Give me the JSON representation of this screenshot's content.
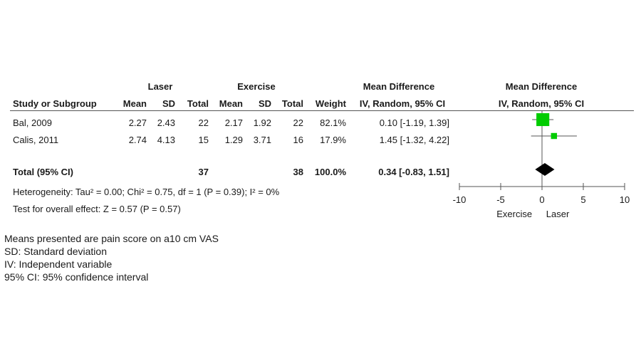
{
  "header": {
    "group1": "Laser",
    "group2": "Exercise",
    "effect_left": "Mean Difference",
    "effect_right": "Mean Difference",
    "col_study": "Study or Subgroup",
    "col_mean1": "Mean",
    "col_sd1": "SD",
    "col_total1": "Total",
    "col_mean2": "Mean",
    "col_sd2": "SD",
    "col_total2": "Total",
    "col_weight": "Weight",
    "col_ci": "IV, Random, 95% CI",
    "col_ci_plot": "IV, Random, 95% CI"
  },
  "studies": [
    {
      "name": "Bal, 2009",
      "mean1": "2.27",
      "sd1": "2.43",
      "total1": "22",
      "mean2": "2.17",
      "sd2": "1.92",
      "total2": "22",
      "weight": "82.1%",
      "ci": "0.10 [-1.19, 1.39]"
    },
    {
      "name": "Calis, 2011",
      "mean1": "2.74",
      "sd1": "4.13",
      "total1": "15",
      "mean2": "1.29",
      "sd2": "3.71",
      "total2": "16",
      "weight": "17.9%",
      "ci": "1.45 [-1.32, 4.22]"
    }
  ],
  "total": {
    "name": "Total (95% CI)",
    "total1": "37",
    "total2": "38",
    "weight": "100.0%",
    "ci": "0.34 [-0.83, 1.51]"
  },
  "heterogeneity": "Heterogeneity: Tau² = 0.00; Chi² = 0.75, df = 1 (P = 0.39); I² = 0%",
  "overall_effect": "Test for overall effect: Z = 0.57 (P = 0.57)",
  "notes": [
    "Means presented are pain score on a10 cm VAS",
    "SD: Standard deviation",
    "IV: Independent variable",
    "95% CI: 95% confidence interval"
  ],
  "chart_data": {
    "type": "scatter",
    "xlim": [
      -10,
      10
    ],
    "ticks": [
      -10,
      -5,
      0,
      5,
      10
    ],
    "tick_labels": [
      "-10",
      "-5",
      "0",
      "5",
      "10"
    ],
    "favours_left": "Exercise",
    "favours_right": "Laser",
    "points": [
      {
        "estimate": 0.1,
        "lower": -1.19,
        "upper": 1.39,
        "weight": 82.1
      },
      {
        "estimate": 1.45,
        "lower": -1.32,
        "upper": 4.22,
        "weight": 17.9
      }
    ],
    "pooled": {
      "estimate": 0.34,
      "lower": -0.83,
      "upper": 1.51
    },
    "colors": {
      "square": "#00cc00",
      "diamond": "#000000",
      "axis": "#555555"
    }
  }
}
